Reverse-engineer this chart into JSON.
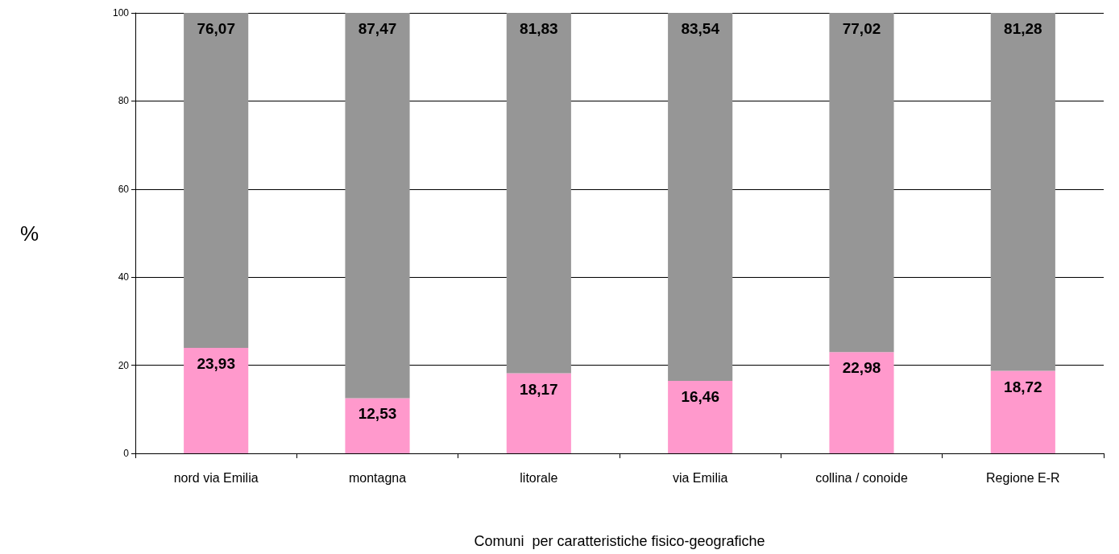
{
  "chart_data": {
    "type": "bar",
    "stacked": true,
    "xlabel": "Comuni  per caratteristiche fisico-geografiche",
    "ylabel": "%",
    "categories": [
      "nord via Emilia",
      "montagna",
      "litorale",
      "via Emilia",
      "collina / conoide",
      "Regione E-R"
    ],
    "series": [
      {
        "color": "#ff99cc",
        "values": [
          23.93,
          12.53,
          18.17,
          16.46,
          22.98,
          18.72
        ],
        "value_labels": [
          "23,93",
          "12,53",
          "18,17",
          "16,46",
          "22,98",
          "18,72"
        ]
      },
      {
        "color": "#969696",
        "values": [
          76.07,
          87.47,
          81.83,
          83.54,
          77.02,
          81.28
        ],
        "value_labels": [
          "76,07",
          "87,47",
          "81,83",
          "83,54",
          "77,02",
          "81,28"
        ]
      }
    ],
    "ylim": [
      0,
      100
    ],
    "yticks": [
      0,
      20,
      40,
      60,
      80,
      100
    ],
    "grid": "y"
  }
}
